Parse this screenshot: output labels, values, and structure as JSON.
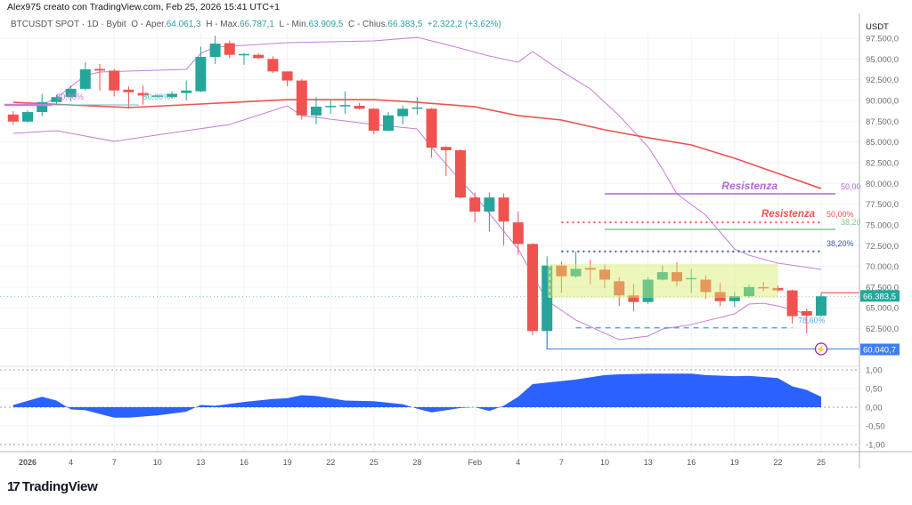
{
  "header": {
    "attribution": "Alex975 creato con TradingView.com, Feb 25, 2026 15:41 UTC+1",
    "symbol": "BTCUSDT SPOT · 1D · Bybit",
    "open_label": "O - Aper.",
    "open": "64.061,3",
    "high_label": "H - Max.",
    "high": "66.787,1",
    "low_label": "L - Min.",
    "low": "63.909,5",
    "close_label": "C - Chius.",
    "close": "66.383,5",
    "change": "+2.322,2 (+3,62%)"
  },
  "footer": {
    "logo_text": "TradingView",
    "logo_mark": "17"
  },
  "colors": {
    "up": "#26a69a",
    "down": "#ef5350",
    "ma": "#ef5350",
    "bands": "#c47fd6",
    "oscillator": "#2962ff",
    "range_box": "#d7ee6a"
  },
  "chart_data": {
    "type": "candlestick",
    "currency": "USDT",
    "ylim": [
      60000,
      98500
    ],
    "y_ticks": [
      "97.500,0",
      "95.000,0",
      "92.500,0",
      "90.000,0",
      "87.500,0",
      "85.000,0",
      "82.500,0",
      "80.000,0",
      "77.500,0",
      "75.000,0",
      "72.500,0",
      "70.000,0",
      "67.500,0",
      "65.000,0",
      "62.500,0"
    ],
    "y_tick_values": [
      97500,
      95000,
      92500,
      90000,
      87500,
      85000,
      82500,
      80000,
      77500,
      75000,
      72500,
      70000,
      67500,
      65000,
      62500
    ],
    "x_ticks": [
      {
        "date": "2026-01-01",
        "label": "2026"
      },
      {
        "date": "2026-01-04",
        "label": "4"
      },
      {
        "date": "2026-01-07",
        "label": "7"
      },
      {
        "date": "2026-01-10",
        "label": "10"
      },
      {
        "date": "2026-01-13",
        "label": "13"
      },
      {
        "date": "2026-01-16",
        "label": "16"
      },
      {
        "date": "2026-01-19",
        "label": "19"
      },
      {
        "date": "2026-01-22",
        "label": "22"
      },
      {
        "date": "2026-01-25",
        "label": "25"
      },
      {
        "date": "2026-01-28",
        "label": "28"
      },
      {
        "date": "2026-02-01",
        "label": "Feb"
      },
      {
        "date": "2026-02-04",
        "label": "4"
      },
      {
        "date": "2026-02-07",
        "label": "7"
      },
      {
        "date": "2026-02-10",
        "label": "10"
      },
      {
        "date": "2026-02-13",
        "label": "13"
      },
      {
        "date": "2026-02-16",
        "label": "16"
      },
      {
        "date": "2026-02-19",
        "label": "19"
      },
      {
        "date": "2026-02-22",
        "label": "22"
      },
      {
        "date": "2026-02-25",
        "label": "25"
      }
    ],
    "candles_columns": [
      "date",
      "open",
      "high",
      "low",
      "close"
    ],
    "candles": [
      [
        "2025-12-31",
        88300,
        88700,
        87100,
        87450
      ],
      [
        "2026-01-01",
        87450,
        88800,
        87300,
        88600
      ],
      [
        "2026-01-02",
        88600,
        90800,
        88100,
        89800
      ],
      [
        "2026-01-03",
        89800,
        90700,
        89600,
        90400
      ],
      [
        "2026-01-04",
        90400,
        91800,
        89900,
        91400
      ],
      [
        "2026-01-05",
        91400,
        94600,
        91200,
        93750
      ],
      [
        "2026-01-06",
        93800,
        94400,
        91200,
        93600
      ],
      [
        "2026-01-07",
        93600,
        93800,
        90500,
        91200
      ],
      [
        "2026-01-08",
        91300,
        91700,
        89000,
        91000
      ],
      [
        "2026-01-09",
        90900,
        91800,
        89500,
        90600
      ],
      [
        "2026-01-10",
        90500,
        90700,
        90400,
        90600
      ],
      [
        "2026-01-11",
        90400,
        91100,
        90200,
        90800
      ],
      [
        "2026-01-12",
        90900,
        92400,
        90000,
        91200
      ],
      [
        "2026-01-13",
        91100,
        96500,
        91000,
        95250
      ],
      [
        "2026-01-14",
        95250,
        97800,
        94400,
        96850
      ],
      [
        "2026-01-15",
        96900,
        97200,
        95100,
        95500
      ],
      [
        "2026-01-16",
        95500,
        95700,
        94300,
        95600
      ],
      [
        "2026-01-17",
        95500,
        95700,
        95000,
        95100
      ],
      [
        "2026-01-18",
        95000,
        95300,
        93300,
        93500
      ],
      [
        "2026-01-19",
        93500,
        93500,
        91700,
        92400
      ],
      [
        "2026-01-20",
        92400,
        92600,
        87700,
        88200
      ],
      [
        "2026-01-21",
        88200,
        90400,
        87100,
        89250
      ],
      [
        "2026-01-22",
        89300,
        90000,
        88400,
        89350
      ],
      [
        "2026-01-23",
        89400,
        91100,
        88400,
        89450
      ],
      [
        "2026-01-24",
        89350,
        89700,
        88900,
        89000
      ],
      [
        "2026-01-25",
        89000,
        89100,
        85900,
        86350
      ],
      [
        "2026-01-26",
        86350,
        88600,
        86300,
        88200
      ],
      [
        "2026-01-27",
        88100,
        89400,
        87100,
        89000
      ],
      [
        "2026-01-28",
        89100,
        90400,
        88300,
        89150
      ],
      [
        "2026-01-29",
        89000,
        89100,
        83100,
        84300
      ],
      [
        "2026-01-30",
        84400,
        84500,
        80900,
        84000
      ],
      [
        "2026-01-31",
        84000,
        84100,
        78200,
        78300
      ],
      [
        "2026-02-01",
        78300,
        78900,
        75300,
        76600
      ],
      [
        "2026-02-02",
        76600,
        78900,
        74200,
        78300
      ],
      [
        "2026-02-03",
        78300,
        78800,
        72500,
        75400
      ],
      [
        "2026-02-04",
        75300,
        76600,
        71400,
        72700
      ],
      [
        "2026-02-05",
        72700,
        72800,
        61700,
        62200
      ],
      [
        "2026-02-06",
        62200,
        71200,
        60040.7,
        70100
      ],
      [
        "2026-02-07",
        70100,
        70600,
        66800,
        68800
      ],
      [
        "2026-02-08",
        68800,
        71800,
        68600,
        69700
      ],
      [
        "2026-02-09",
        69800,
        70800,
        67800,
        69600
      ],
      [
        "2026-02-10",
        69600,
        70200,
        67400,
        68400
      ],
      [
        "2026-02-11",
        68200,
        68700,
        65200,
        66500
      ],
      [
        "2026-02-12",
        66500,
        67900,
        64600,
        65700
      ],
      [
        "2026-02-13",
        65700,
        68700,
        65500,
        68400
      ],
      [
        "2026-02-14",
        68400,
        70100,
        68300,
        69300
      ],
      [
        "2026-02-15",
        69300,
        70500,
        67600,
        68200
      ],
      [
        "2026-02-16",
        68500,
        69700,
        66800,
        68600
      ],
      [
        "2026-02-17",
        68400,
        68900,
        66100,
        66900
      ],
      [
        "2026-02-18",
        66900,
        68000,
        65200,
        65800
      ],
      [
        "2026-02-19",
        65800,
        66900,
        65100,
        66400
      ],
      [
        "2026-02-20",
        66400,
        67800,
        66200,
        67500
      ],
      [
        "2026-02-21",
        67500,
        68100,
        67000,
        67400
      ],
      [
        "2026-02-22",
        67400,
        67700,
        66900,
        67100
      ],
      [
        "2026-02-23",
        67100,
        67200,
        63100,
        64000
      ],
      [
        "2026-02-24",
        64600,
        64900,
        61900,
        64061.3
      ],
      [
        "2026-02-25",
        64061.3,
        66787.1,
        63909.5,
        66383.5
      ]
    ],
    "moving_average": [
      [
        "2025-12-31",
        89780
      ],
      [
        "2026-01-08",
        89140
      ],
      [
        "2026-01-13",
        89570
      ],
      [
        "2026-01-19",
        90100
      ],
      [
        "2026-01-25",
        90100
      ],
      [
        "2026-01-28",
        89780
      ],
      [
        "2026-02-01",
        89240
      ],
      [
        "2026-02-04",
        88170
      ],
      [
        "2026-02-07",
        87640
      ],
      [
        "2026-02-10",
        86460
      ],
      [
        "2026-02-13",
        85500
      ],
      [
        "2026-02-16",
        84640
      ],
      [
        "2026-02-19",
        83030
      ],
      [
        "2026-02-22",
        81210
      ],
      [
        "2026-02-25",
        79380
      ]
    ],
    "upper_band": [
      [
        "2025-12-31",
        89460
      ],
      [
        "2026-01-02",
        89460
      ],
      [
        "2026-01-03",
        90320
      ],
      [
        "2026-01-05",
        93000
      ],
      [
        "2026-01-06",
        93430
      ],
      [
        "2026-01-12",
        93750
      ],
      [
        "2026-01-13",
        95680
      ],
      [
        "2026-01-14",
        96430
      ],
      [
        "2026-01-19",
        96960
      ],
      [
        "2026-01-25",
        97180
      ],
      [
        "2026-01-28",
        97600
      ],
      [
        "2026-01-30",
        96750
      ],
      [
        "2026-02-02",
        95360
      ],
      [
        "2026-02-04",
        94610
      ],
      [
        "2026-02-05",
        95890
      ],
      [
        "2026-02-07",
        93530
      ],
      [
        "2026-02-09",
        91390
      ],
      [
        "2026-02-11",
        88170
      ],
      [
        "2026-02-13",
        84420
      ],
      [
        "2026-02-14",
        81740
      ],
      [
        "2026-02-15",
        78740
      ],
      [
        "2026-02-17",
        76170
      ],
      [
        "2026-02-19",
        72090
      ],
      [
        "2026-02-20",
        71340
      ],
      [
        "2026-02-22",
        70380
      ],
      [
        "2026-02-25",
        69630
      ]
    ],
    "lower_band": [
      [
        "2025-12-31",
        86030
      ],
      [
        "2026-01-03",
        86350
      ],
      [
        "2026-01-07",
        85070
      ],
      [
        "2026-01-12",
        86350
      ],
      [
        "2026-01-15",
        87100
      ],
      [
        "2026-01-19",
        89350
      ],
      [
        "2026-01-20",
        88170
      ],
      [
        "2026-01-25",
        87100
      ],
      [
        "2026-01-28",
        86570
      ],
      [
        "2026-01-29",
        84320
      ],
      [
        "2026-01-31",
        80350
      ],
      [
        "2026-02-01",
        78530
      ],
      [
        "2026-02-04",
        72090
      ],
      [
        "2026-02-06",
        65880
      ],
      [
        "2026-02-08",
        63520
      ],
      [
        "2026-02-11",
        61160
      ],
      [
        "2026-02-13",
        61590
      ],
      [
        "2026-02-14",
        62450
      ],
      [
        "2026-02-16",
        62980
      ],
      [
        "2026-02-19",
        64270
      ],
      [
        "2026-02-20",
        65450
      ],
      [
        "2026-02-21",
        65550
      ],
      [
        "2026-02-22",
        65230
      ],
      [
        "2026-02-24",
        64270
      ]
    ],
    "annotations": {
      "resistance_purple": {
        "label": "Resistenza",
        "price": 78750,
        "from": "2026-02-10",
        "to": "2026-02-26",
        "level_text": "50,00",
        "color": "#b366d6"
      },
      "resistance_red": {
        "label": "Resistenza",
        "price": 75300,
        "from": "2026-02-07",
        "to": "2026-02-25",
        "level_text": "50,00%",
        "color": "#ef5350"
      },
      "fib_green": {
        "price": 74450,
        "from": "2026-02-10",
        "to": "2026-02-26",
        "level_text": "38,20",
        "color": "#8bc68d"
      },
      "fib_blue": {
        "price": 71800,
        "from": "2026-02-07",
        "to": "2026-02-25",
        "level_text": "38,20%",
        "color": "#3f51b5"
      },
      "fib_dashed": {
        "price": 62600,
        "from": "2026-02-08",
        "to": "2026-02-23",
        "level_text": "78,60%",
        "color": "#5aa9e6"
      },
      "low_line": {
        "price": 60040.7,
        "from": "2026-02-06",
        "label": "60.040,7",
        "color": "#3d7ef2"
      },
      "range_box": {
        "from": "2026-02-06",
        "to": "2026-02-22",
        "top": 70300,
        "bottom": 66200
      },
      "early_purple": {
        "date": "2026-01-03",
        "price": 90100,
        "level_text": "50,00%",
        "color": "#c47fd6"
      },
      "early_teal": {
        "date": "2026-01-09",
        "price": 90100,
        "level_text": "50,00%",
        "color": "#5fc3c0"
      },
      "last_price_label": "66.383,5"
    },
    "oscillator": {
      "y_ticks": [
        "1,00",
        "0,50",
        "0,00",
        "-0,50",
        "-1,00"
      ],
      "y_tick_values": [
        1,
        0.5,
        0,
        -0.5,
        -1
      ],
      "values": [
        [
          "2025-12-31",
          0.06
        ],
        [
          "2026-01-02",
          0.28
        ],
        [
          "2026-01-03",
          0.18
        ],
        [
          "2026-01-04",
          -0.06
        ],
        [
          "2026-01-05",
          -0.08
        ],
        [
          "2026-01-07",
          -0.28
        ],
        [
          "2026-01-08",
          -0.28
        ],
        [
          "2026-01-10",
          -0.22
        ],
        [
          "2026-01-12",
          -0.12
        ],
        [
          "2026-01-13",
          0.06
        ],
        [
          "2026-01-14",
          0.04
        ],
        [
          "2026-01-16",
          0.14
        ],
        [
          "2026-01-18",
          0.22
        ],
        [
          "2026-01-19",
          0.24
        ],
        [
          "2026-01-20",
          0.32
        ],
        [
          "2026-01-21",
          0.3
        ],
        [
          "2026-01-23",
          0.18
        ],
        [
          "2026-01-25",
          0.16
        ],
        [
          "2026-01-27",
          0.08
        ],
        [
          "2026-01-28",
          -0.04
        ],
        [
          "2026-01-29",
          -0.14
        ],
        [
          "2026-01-31",
          -0.02
        ],
        [
          "2026-02-01",
          0
        ],
        [
          "2026-02-02",
          -0.1
        ],
        [
          "2026-02-03",
          0.04
        ],
        [
          "2026-02-04",
          0.28
        ],
        [
          "2026-02-05",
          0.62
        ],
        [
          "2026-02-07",
          0.7
        ],
        [
          "2026-02-08",
          0.74
        ],
        [
          "2026-02-10",
          0.86
        ],
        [
          "2026-02-11",
          0.88
        ],
        [
          "2026-02-13",
          0.9
        ],
        [
          "2026-02-16",
          0.9
        ],
        [
          "2026-02-17",
          0.86
        ],
        [
          "2026-02-19",
          0.83
        ],
        [
          "2026-02-20",
          0.84
        ],
        [
          "2026-02-22",
          0.78
        ],
        [
          "2026-02-23",
          0.56
        ],
        [
          "2026-02-24",
          0.46
        ],
        [
          "2026-02-25",
          0.28
        ]
      ]
    }
  }
}
